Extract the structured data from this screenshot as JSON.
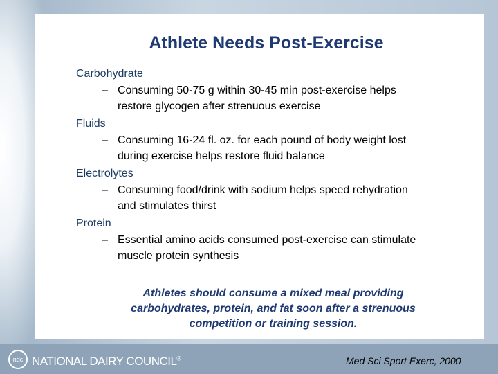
{
  "title": "Athlete Needs Post-Exercise",
  "sections": [
    {
      "heading": "Carbohydrate",
      "bullet": [
        "Consuming 50-75 g within 30-45 min post-exercise helps",
        "restore glycogen after strenuous exercise"
      ]
    },
    {
      "heading": "Fluids",
      "bullet": [
        "Consuming 16-24 fl. oz. for each pound of body weight lost",
        "during exercise helps restore fluid balance"
      ]
    },
    {
      "heading": "Electrolytes",
      "bullet": [
        "Consuming food/drink with sodium helps speed rehydration",
        "and stimulates thirst"
      ]
    },
    {
      "heading": "Protein",
      "bullet": [
        "Essential amino acids consumed post-exercise can stimulate",
        "muscle protein synthesis"
      ]
    }
  ],
  "dash": "–",
  "note": [
    "Athletes should consume a mixed meal providing",
    "carbohydrates, protein, and fat soon after a strenuous",
    "competition or training session."
  ],
  "citation": "Med Sci Sport Exerc, 2000",
  "footer": {
    "logo_mark": "ndc",
    "logo_text": "NATIONAL DAIRY COUNCIL",
    "registered": "®"
  }
}
